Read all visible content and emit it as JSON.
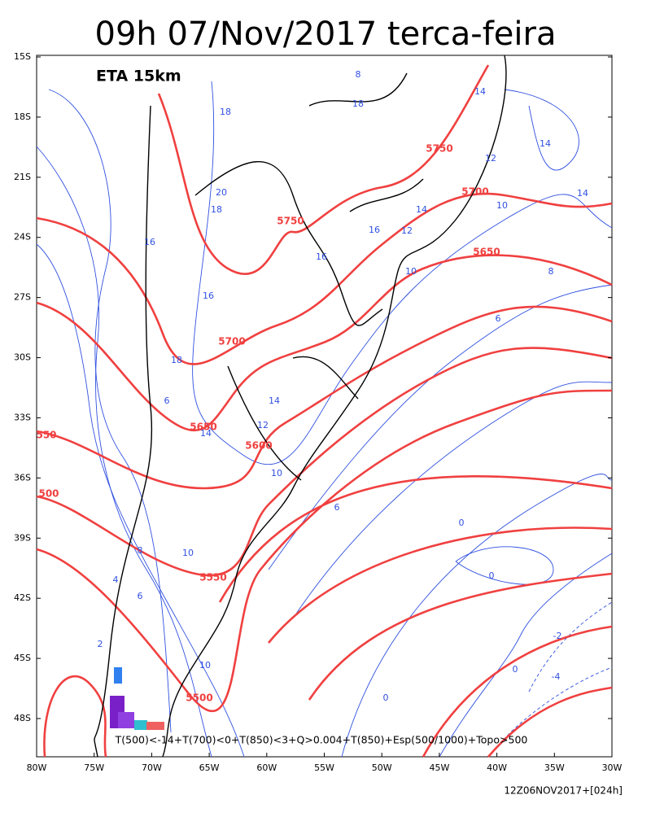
{
  "header": {
    "title": "09h 07/Nov/2017 terca-feira",
    "model": "ETA 15km"
  },
  "axes": {
    "lat": [
      "15S",
      "18S",
      "21S",
      "24S",
      "27S",
      "30S",
      "33S",
      "36S",
      "39S",
      "42S",
      "45S",
      "48S"
    ],
    "lon": [
      "80W",
      "75W",
      "70W",
      "65W",
      "60W",
      "55W",
      "50W",
      "45W",
      "40W",
      "35W",
      "30W"
    ]
  },
  "contour_labels": {
    "height": [
      5750,
      5700,
      5750,
      5650,
      5700,
      5650,
      5600,
      550,
      500,
      5550,
      5500
    ],
    "temperature": [
      8,
      14,
      18,
      18,
      14,
      12,
      14,
      10,
      20,
      18,
      16,
      12,
      14,
      16,
      16,
      10,
      8,
      16,
      6,
      18,
      6,
      14,
      12,
      14,
      10,
      6,
      0,
      10,
      8,
      4,
      6,
      2,
      -2,
      10,
      -4,
      0,
      0,
      0
    ]
  },
  "legend": "T(500)<-14+T(700)<0+T(850)<3+Q>0.004+T(850)+Esp(500/1000)+Topo>500",
  "footer": "12Z06NOV2017+[024h]"
}
